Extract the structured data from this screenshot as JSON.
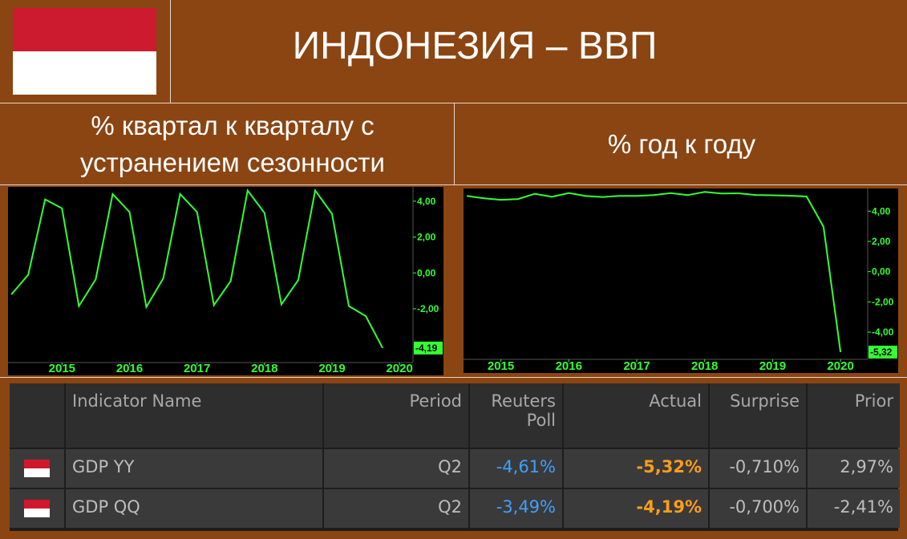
{
  "header": {
    "title": "ИНДОНЕЗИЯ – ВВП"
  },
  "chart_data": [
    {
      "type": "line",
      "title": "% квартал к кварталу с устранением сезонности",
      "color": "#33ff33",
      "x": [
        2014.25,
        2014.5,
        2014.75,
        2015,
        2015.25,
        2015.5,
        2015.75,
        2016,
        2016.25,
        2016.5,
        2016.75,
        2017,
        2017.25,
        2017.5,
        2017.75,
        2018,
        2018.25,
        2018.5,
        2018.75,
        2019,
        2019.25,
        2019.5,
        2019.75
      ],
      "values": [
        -1.2,
        -0.1,
        4.1,
        3.6,
        -1.85,
        -0.35,
        4.4,
        3.4,
        -1.9,
        -0.3,
        4.4,
        3.4,
        -1.8,
        -0.45,
        4.6,
        3.35,
        -1.75,
        -0.4,
        4.6,
        3.3,
        -1.85,
        -2.41,
        -4.19
      ],
      "last_label": "-4,19",
      "xlim": [
        2014.2,
        2020.2
      ],
      "xticks": [
        2015,
        2016,
        2017,
        2018,
        2019,
        2020
      ],
      "ylim": [
        -5,
        4.8
      ],
      "yticks": [
        {
          "value": 4,
          "label": "4,00"
        },
        {
          "value": 2,
          "label": "2,00"
        },
        {
          "value": 0,
          "label": "0,00"
        },
        {
          "value": -2,
          "label": "-2,00"
        }
      ]
    },
    {
      "type": "line",
      "title": "% год к году",
      "color": "#33ff33",
      "x": [
        2014.5,
        2014.75,
        2015,
        2015.25,
        2015.5,
        2015.75,
        2016,
        2016.25,
        2016.5,
        2016.75,
        2017,
        2017.25,
        2017.5,
        2017.75,
        2018,
        2018.25,
        2018.5,
        2018.75,
        2019,
        2019.25,
        2019.5,
        2019.75,
        2020
      ],
      "values": [
        5.01,
        4.85,
        4.75,
        4.8,
        5.15,
        4.95,
        5.2,
        5.0,
        4.94,
        5.01,
        5.01,
        5.06,
        5.19,
        5.06,
        5.27,
        5.17,
        5.18,
        5.07,
        5.05,
        5.02,
        4.97,
        2.97,
        -5.32
      ],
      "last_label": "-5,32",
      "xlim": [
        2014.45,
        2020.4
      ],
      "xticks": [
        2015,
        2016,
        2017,
        2018,
        2019,
        2020
      ],
      "ylim": [
        -5.8,
        5.5
      ],
      "yticks": [
        {
          "value": 4,
          "label": "4,00"
        },
        {
          "value": 2,
          "label": "2,00"
        },
        {
          "value": 0,
          "label": "0,00"
        },
        {
          "value": -2,
          "label": "-2,00"
        },
        {
          "value": -4,
          "label": "-4,00"
        }
      ]
    }
  ],
  "table": {
    "columns": [
      "Indicator Name",
      "Period",
      "Reuters Poll",
      "Actual",
      "Surprise",
      "Prior"
    ],
    "rows": [
      [
        "GDP YY",
        "Q2",
        "-4,61%",
        "-5,32%",
        "-0,710%",
        "2,97%"
      ],
      [
        "GDP QQ",
        "Q2",
        "-3,49%",
        "-4,19%",
        "-0,700%",
        "-2,41%"
      ]
    ]
  }
}
